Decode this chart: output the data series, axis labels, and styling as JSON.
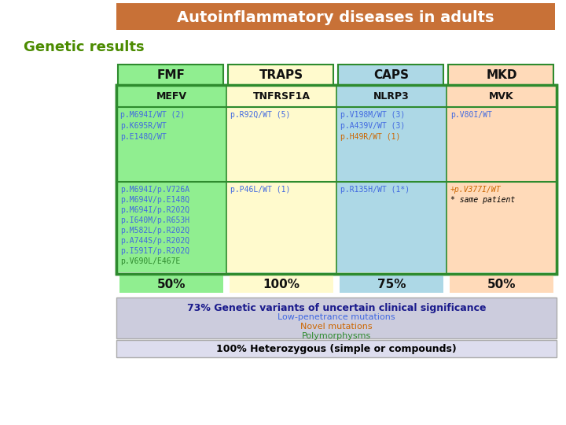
{
  "title": "Autoinflammatory diseases in adults",
  "title_bg": "#C87137",
  "title_color": "#FFFFFF",
  "subtitle": "Genetic results",
  "subtitle_color": "#4B8B00",
  "bg_color": "#FFFFFF",
  "slide_bg": "#EEEEEE",
  "header_labels": [
    "FMF",
    "TRAPS",
    "CAPS",
    "MKD"
  ],
  "header_bg": [
    "#90EE90",
    "#FFFACD",
    "#ADD8E6",
    "#FFDAB9"
  ],
  "header_border": [
    "#2E8B2E",
    "#CCCC00",
    "#6699CC",
    "#CC8844"
  ],
  "gene_labels": [
    "MEFV",
    "TNFRSF1A",
    "NLRP3",
    "MVK"
  ],
  "gene_bg": [
    "#90EE90",
    "#FFFACD",
    "#ADD8E6",
    "#FFDAB9"
  ],
  "table_border": "#2E8B2E",
  "col_bg": [
    "#90EE90",
    "#FFFACD",
    "#ADD8E6",
    "#FFDAB9"
  ],
  "row1_content": [
    "p.M694I/WT (2)\np.K695R/WT\np.E148Q/WT",
    "p.R92Q/WT (5)",
    "p.V198M/WT (3)\np.A439V/WT (3)\np.H49R/WT (1)",
    "p.V80I/WT"
  ],
  "row1_colors": [
    [
      "#4169E1",
      "#4169E1",
      "#4169E1"
    ],
    [
      "#4169E1"
    ],
    [
      "#4169E1",
      "#4169E1",
      "#CC6600"
    ],
    [
      "#4169E1"
    ]
  ],
  "row2_content": [
    "p.M694I/p.V726A\np.M694V/p.E148Q\np.M694I/p.R202Q\np.I640M/p.R653H\np.M582L/p.R202Q\np.A744S/p.R202Q\np.I591T/p.R202Q\np.V690L/E467E",
    "p.P46L/WT (1)",
    "p.R135H/WT (1*)",
    "+p.V377I/WT\n* same patient"
  ],
  "row2_colors": [
    [
      "#4169E1",
      "#4169E1",
      "#4169E1",
      "#4169E1",
      "#4169E1",
      "#4169E1",
      "#4169E1",
      "#2E8B2E"
    ],
    [
      "#4169E1"
    ],
    [
      "#4169E1"
    ],
    [
      "#CC6600",
      "#000000"
    ]
  ],
  "row2_italic": [
    [
      false,
      false,
      false,
      false,
      false,
      false,
      false,
      false
    ],
    [
      false
    ],
    [
      false
    ],
    [
      true,
      true
    ]
  ],
  "percentages": [
    "50%",
    "100%",
    "75%",
    "50%"
  ],
  "pct_bg": [
    "#90EE90",
    "#FFFACD",
    "#ADD8E6",
    "#FFDAB9"
  ],
  "footer_bg": "#CCCCDD",
  "footer_title": "73% Genetic variants of uncertain clinical significance",
  "footer_title_color": "#1A1A8C",
  "footer_lines": [
    "Low-penetrance mutations",
    "Novel mutations",
    "Polymorphysms"
  ],
  "footer_colors": [
    "#4169E1",
    "#CC6600",
    "#2E8B2E"
  ],
  "footer2": "100% Heterozygous (simple or compounds)",
  "footer2_color": "#000000",
  "footer2_bg": "#DDDDEE"
}
